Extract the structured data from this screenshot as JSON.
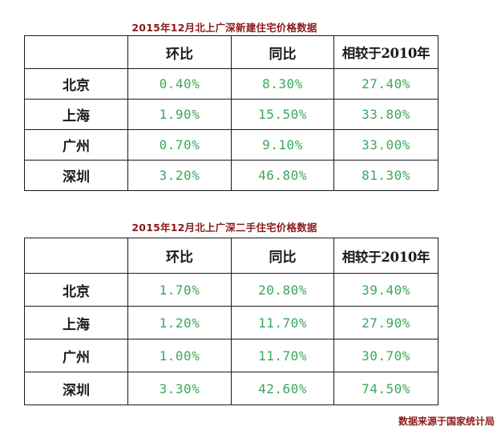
{
  "tables": [
    {
      "title": "2015年12月北上广深新建住宅价格数据",
      "headers": [
        "",
        "环比",
        "同比",
        "相较于2010年"
      ],
      "rows": [
        {
          "city": "北京",
          "mom": "0.40%",
          "yoy": "8.30%",
          "vs2010": "27.40%"
        },
        {
          "city": "上海",
          "mom": "1.90%",
          "yoy": "15.50%",
          "vs2010": "33.80%"
        },
        {
          "city": "广州",
          "mom": "0.70%",
          "yoy": "9.10%",
          "vs2010": "33.00%"
        },
        {
          "city": "深圳",
          "mom": "3.20%",
          "yoy": "46.80%",
          "vs2010": "81.30%"
        }
      ]
    },
    {
      "title": "2015年12月北上广深二手住宅价格数据",
      "headers": [
        "",
        "环比",
        "同比",
        "相较于2010年"
      ],
      "rows": [
        {
          "city": "北京",
          "mom": "1.70%",
          "yoy": "20.80%",
          "vs2010": "39.40%"
        },
        {
          "city": "上海",
          "mom": "1.20%",
          "yoy": "11.70%",
          "vs2010": "27.90%"
        },
        {
          "city": "广州",
          "mom": "1.00%",
          "yoy": "11.70%",
          "vs2010": "30.70%"
        },
        {
          "city": "深圳",
          "mom": "3.30%",
          "yoy": "42.60%",
          "vs2010": "74.50%"
        }
      ]
    }
  ],
  "source_note": "数据来源于国家统计局",
  "colors": {
    "title": "#8b1a1a",
    "value_text": "#3aa85a",
    "border": "#1a1a1a"
  }
}
